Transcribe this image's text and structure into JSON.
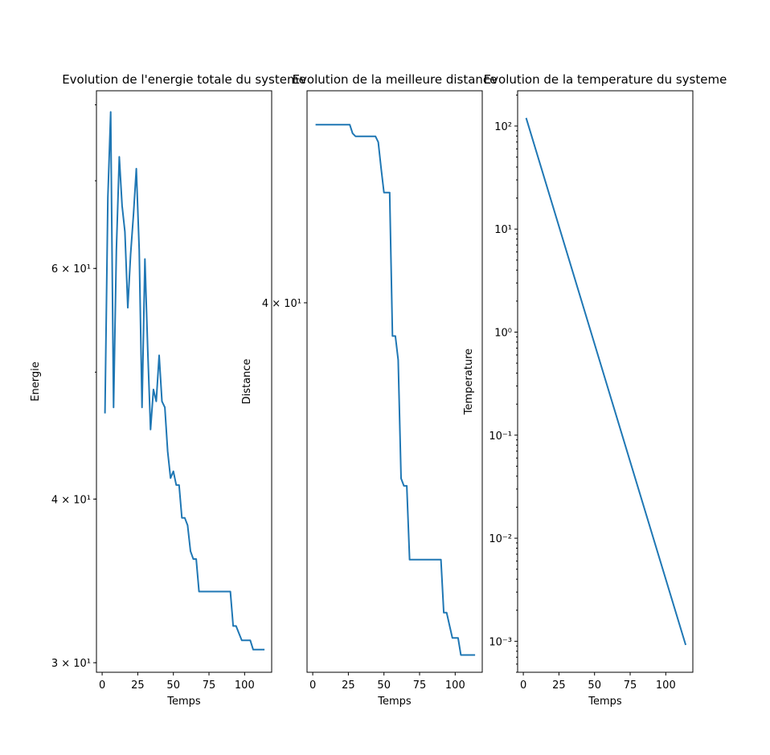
{
  "chart_data": [
    {
      "type": "line",
      "title": "Evolution de l'energie totale du systeme",
      "xlabel": "Temps",
      "ylabel": "Energie",
      "yscale": "log",
      "xlim": [
        -4,
        119
      ],
      "ylim": [
        29.5,
        82
      ],
      "xticks": [
        "0",
        "25",
        "50",
        "75",
        "100"
      ],
      "yticks_major": [
        "3 × 10¹",
        "4 × 10¹",
        "6 × 10¹"
      ],
      "grid": false,
      "color": "#1f77b4",
      "x": [
        2,
        4,
        6,
        8,
        10,
        12,
        14,
        16,
        18,
        20,
        22,
        24,
        26,
        28,
        30,
        32,
        34,
        36,
        38,
        40,
        42,
        44,
        46,
        48,
        50,
        52,
        54,
        56,
        58,
        60,
        62,
        64,
        66,
        68,
        70,
        90,
        92,
        94,
        96,
        98,
        100,
        102,
        104,
        106,
        108,
        110,
        112,
        114
      ],
      "y": [
        46.5,
        68,
        79,
        47,
        62,
        73,
        67,
        64,
        56,
        61.5,
        66,
        71.5,
        62,
        47,
        61,
        52,
        45.2,
        48.5,
        47.5,
        51.5,
        47.5,
        47,
        43.5,
        41.5,
        42,
        41,
        41,
        38.7,
        38.7,
        38.2,
        36.5,
        36,
        36,
        34,
        34,
        34,
        32,
        32,
        31.6,
        31.2,
        31.2,
        31.2,
        31.2,
        30.7,
        30.7,
        30.7,
        30.7,
        30.7
      ]
    },
    {
      "type": "line",
      "title": "Evolution de la meilleure distance",
      "xlabel": "Temps",
      "ylabel": "Distance",
      "yscale": "log",
      "xlim": [
        -4,
        119
      ],
      "ylim": [
        30.2,
        47
      ],
      "xticks": [
        "0",
        "25",
        "50",
        "75",
        "100"
      ],
      "yticks_major": [
        "4 × 10¹"
      ],
      "grid": false,
      "color": "#1f77b4",
      "x": [
        2,
        26,
        28,
        30,
        44,
        46,
        48,
        50,
        52,
        54,
        56,
        58,
        60,
        62,
        64,
        66,
        68,
        88,
        90,
        92,
        94,
        96,
        98,
        100,
        102,
        104,
        106,
        108,
        110,
        112,
        114
      ],
      "y": [
        45.8,
        45.8,
        45.5,
        45.4,
        45.4,
        45.2,
        44.3,
        43.5,
        43.5,
        43.5,
        39,
        39,
        38.3,
        35,
        34.8,
        34.8,
        32.9,
        32.9,
        32.9,
        31.6,
        31.6,
        31.3,
        31,
        31,
        31,
        30.6,
        30.6,
        30.6,
        30.6,
        30.6,
        30.6
      ]
    },
    {
      "type": "line",
      "title": "Evolution de la temperature du systeme",
      "xlabel": "Temps",
      "ylabel": "Temperature",
      "yscale": "log",
      "xlim": [
        -4,
        119
      ],
      "ylim": [
        0.0005,
        220
      ],
      "xticks": [
        "0",
        "25",
        "50",
        "75",
        "100"
      ],
      "yticks": [
        "10²",
        "10¹",
        "10⁰",
        "10⁻¹",
        "10⁻²",
        "10⁻³"
      ],
      "grid": false,
      "color": "#1f77b4",
      "x": [
        2,
        114
      ],
      "y": [
        120,
        0.00092
      ]
    }
  ]
}
